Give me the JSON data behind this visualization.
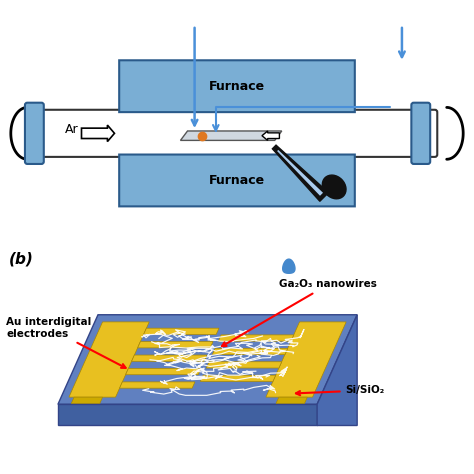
{
  "bg_color": "#ffffff",
  "furnace_color": "#7aaed4",
  "furnace_border": "#2a5a8a",
  "tube_color": "#ffffff",
  "tube_border": "#333333",
  "arrow_color": "#4a90d9",
  "substrate_color": "#d0d8e0",
  "source_color": "#e07820",
  "gold_color": "#e8c020",
  "substrate_device_color": "#6080c0",
  "right_face_color": "#4a6ab0",
  "front_face_color": "#4060a0",
  "label_furnace": "Furnace",
  "label_ar": "Ar",
  "label_b": "(b)",
  "label_au": "Au interdigital\nelectrodes",
  "label_ga2o3": "Ga₂O₃ nanowires",
  "label_si": "Si/SiO₂"
}
